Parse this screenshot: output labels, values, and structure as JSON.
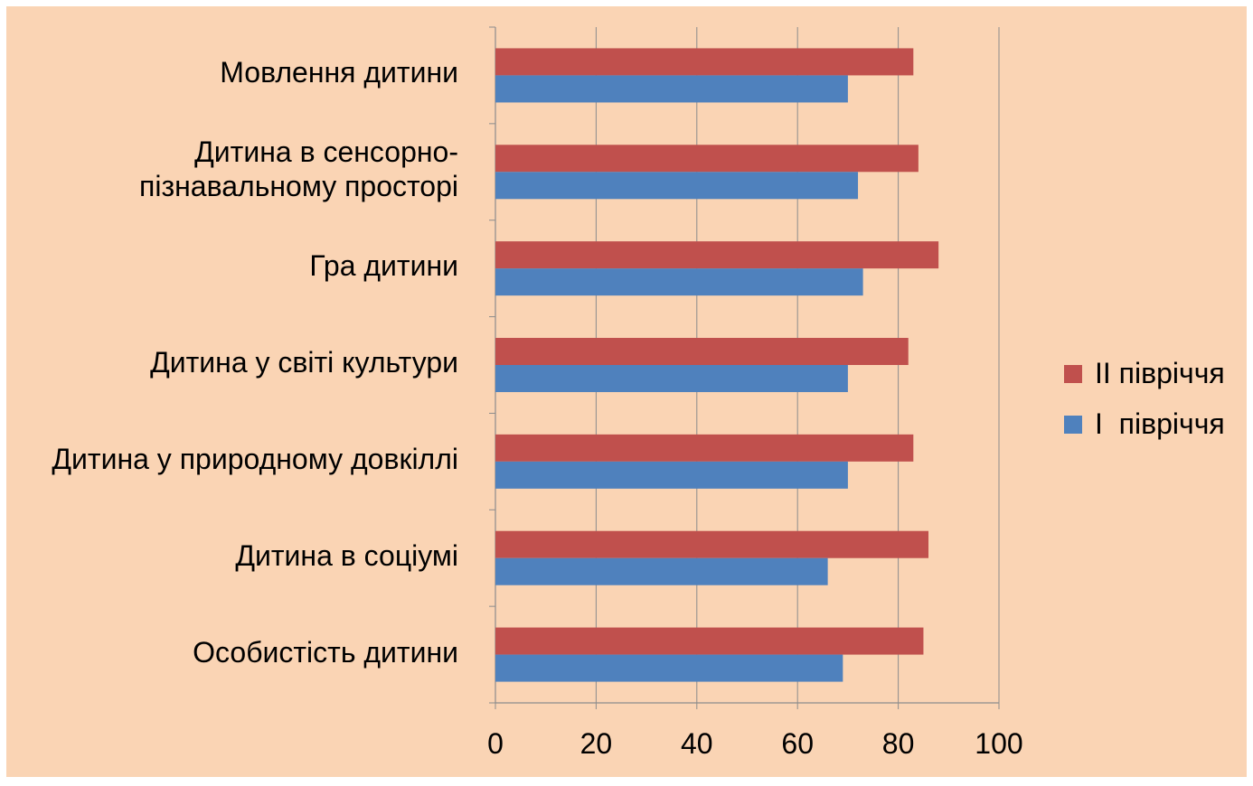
{
  "chart_data": {
    "type": "bar",
    "orientation": "horizontal",
    "categories": [
      "Мовлення дитини",
      "Дитина в сенсорно-\nпізнавальному просторі",
      "Гра дитини",
      "Дитина у світі культури",
      "Дитина у природному довкіллі",
      "Дитина в соціумі",
      "Особистість дитини"
    ],
    "series": [
      {
        "name": "ІІ півріччя",
        "color": "#c0504d",
        "values": [
          83,
          84,
          88,
          82,
          83,
          86,
          85
        ]
      },
      {
        "name": "І  півріччя",
        "color": "#4f81bd",
        "values": [
          70,
          72,
          73,
          70,
          70,
          66,
          69
        ]
      }
    ],
    "xlim": [
      0,
      100
    ],
    "xticks": [
      "0",
      "20",
      "40",
      "60",
      "80",
      "100"
    ],
    "grid": true,
    "legend_position": "right",
    "background": "#fad4b4"
  }
}
